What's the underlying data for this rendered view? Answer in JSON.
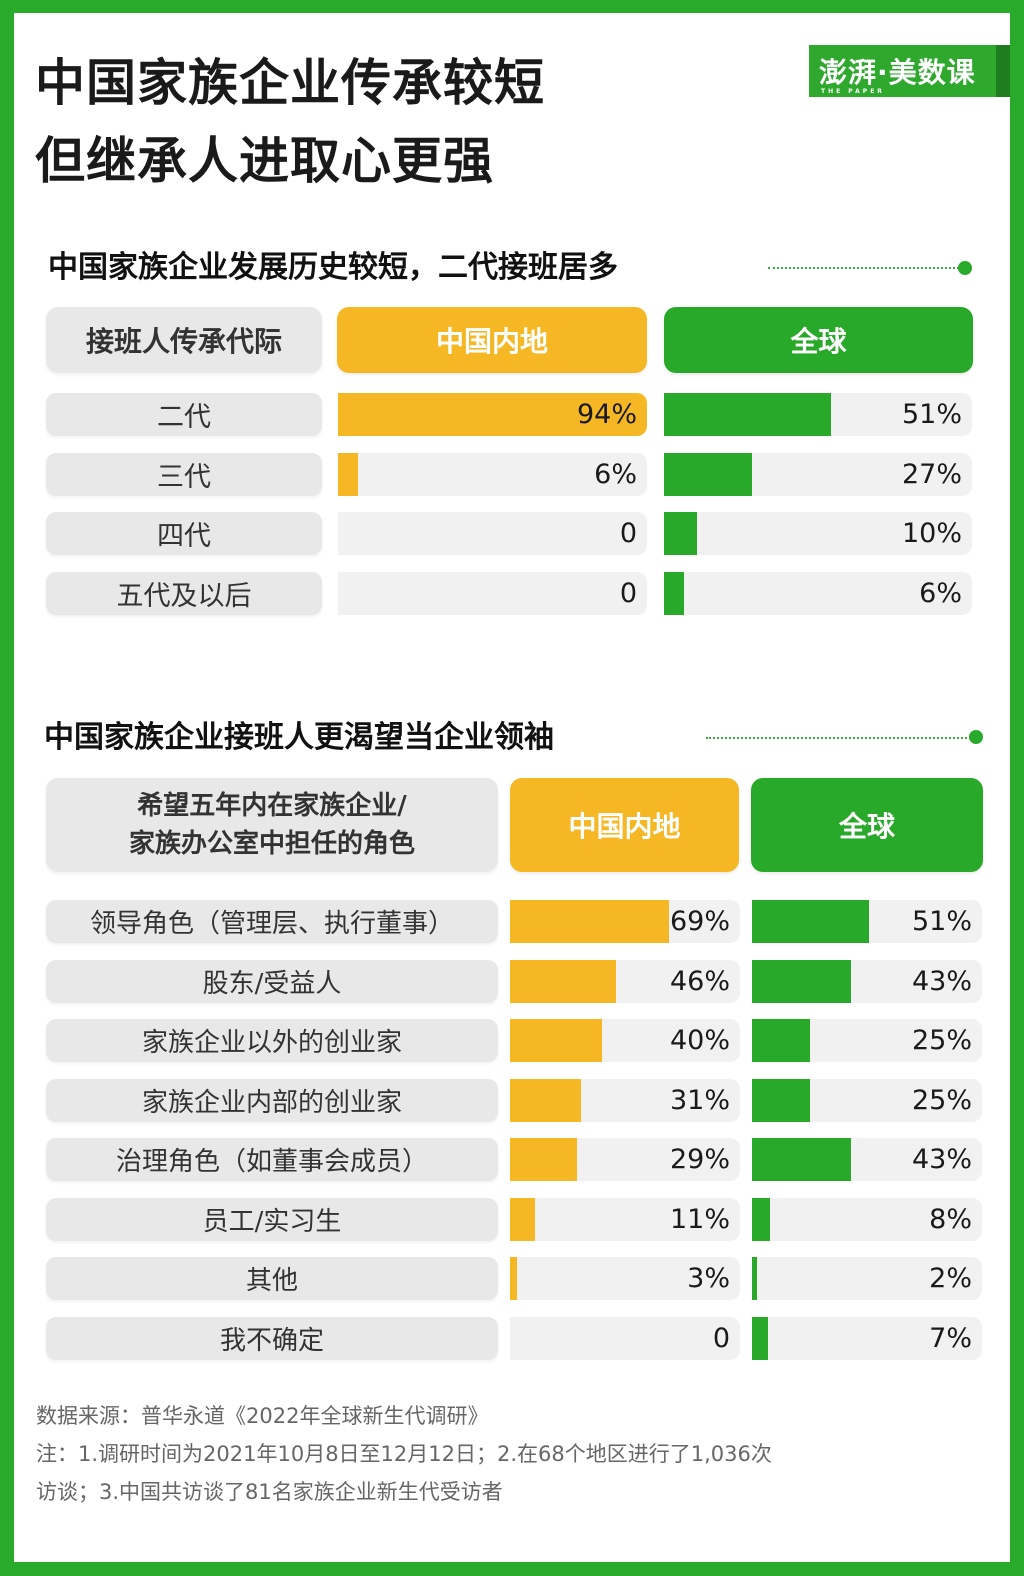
{
  "header": {
    "title_line1": "中国家族企业传承较短",
    "title_line2": "但继承人进取心更强",
    "logo_text": "澎湃·美数课",
    "logo_sub": "THE PAPER"
  },
  "colors": {
    "china": "#f5b824",
    "global": "#29a929",
    "frame": "#2aaa2a",
    "track": "#f1f1f1",
    "label_bg": "#e8e8e8"
  },
  "section1": {
    "title": "中国家族企业发展历史较短，二代接班居多",
    "col_category": "接班人传承代际",
    "col_china": "中国内地",
    "col_global": "全球",
    "rows": [
      {
        "label": "二代",
        "china": "94%",
        "global": "51%"
      },
      {
        "label": "三代",
        "china": "6%",
        "global": "27%"
      },
      {
        "label": "四代",
        "china": "0",
        "global": "10%"
      },
      {
        "label": "五代及以后",
        "china": "0",
        "global": "6%"
      }
    ]
  },
  "section2": {
    "title": "中国家族企业接班人更渴望当企业领袖",
    "col_category_line1": "希望五年内在家族企业/",
    "col_category_line2": "家族办公室中担任的角色",
    "col_china": "中国内地",
    "col_global": "全球",
    "rows": [
      {
        "label": "领导角色（管理层、执行董事）",
        "china": "69%",
        "global": "51%"
      },
      {
        "label": "股东/受益人",
        "china": "46%",
        "global": "43%"
      },
      {
        "label": "家族企业以外的创业家",
        "china": "40%",
        "global": "25%"
      },
      {
        "label": "家族企业内部的创业家",
        "china": "31%",
        "global": "25%"
      },
      {
        "label": "治理角色（如董事会成员）",
        "china": "29%",
        "global": "43%"
      },
      {
        "label": "员工/实习生",
        "china": "11%",
        "global": "8%"
      },
      {
        "label": "其他",
        "china": "3%",
        "global": "2%"
      },
      {
        "label": "我不确定",
        "china": "0",
        "global": "7%"
      }
    ]
  },
  "footer": {
    "source": "数据来源：普华永道《2022年全球新生代调研》",
    "note_line1": "注：1.调研时间为2021年10月8日至12月12日；2.在68个地区进行了1,036次",
    "note_line2": "访谈；3.中国共访谈了81名家族企业新生代受访者"
  },
  "chart_data": [
    {
      "type": "bar",
      "orientation": "horizontal",
      "title": "中国家族企业发展历史较短，二代接班居多",
      "xlabel": "",
      "ylabel": "接班人传承代际",
      "categories": [
        "二代",
        "三代",
        "四代",
        "五代及以后"
      ],
      "series": [
        {
          "name": "中国内地",
          "color": "#f5b824",
          "values": [
            94,
            6,
            0,
            0
          ]
        },
        {
          "name": "全球",
          "color": "#29a929",
          "values": [
            51,
            27,
            10,
            6
          ]
        }
      ],
      "unit": "%",
      "xlim": [
        0,
        94
      ]
    },
    {
      "type": "bar",
      "orientation": "horizontal",
      "title": "中国家族企业接班人更渴望当企业领袖",
      "xlabel": "",
      "ylabel": "希望五年内在家族企业/家族办公室中担任的角色",
      "categories": [
        "领导角色（管理层、执行董事）",
        "股东/受益人",
        "家族企业以外的创业家",
        "家族企业内部的创业家",
        "治理角色（如董事会成员）",
        "员工/实习生",
        "其他",
        "我不确定"
      ],
      "series": [
        {
          "name": "中国内地",
          "color": "#f5b824",
          "values": [
            69,
            46,
            40,
            31,
            29,
            11,
            3,
            0
          ]
        },
        {
          "name": "全球",
          "color": "#29a929",
          "values": [
            51,
            43,
            25,
            25,
            43,
            8,
            2,
            7
          ]
        }
      ],
      "unit": "%",
      "xlim": [
        0,
        100
      ]
    }
  ]
}
